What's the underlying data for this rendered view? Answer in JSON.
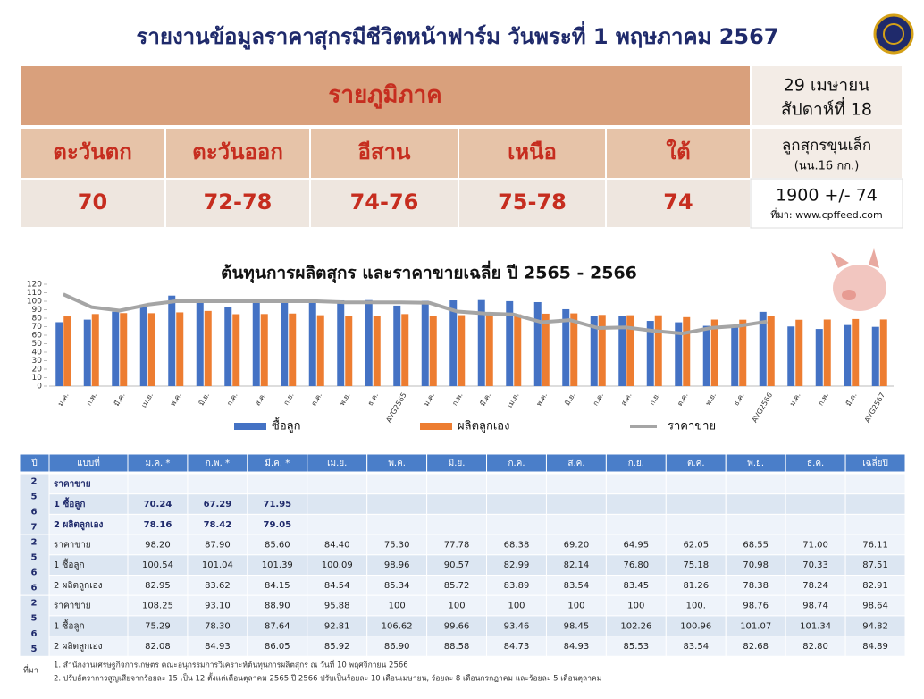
{
  "header": {
    "title": "รายงานข้อมูลราคาสุกรมีชีวิตหน้าฟาร์ม วันพระที่ 1 พฤษภาคม 2567"
  },
  "regions": {
    "title": "รายภูมิภาค",
    "date": "29 เมษายน",
    "week": "สัปดาห์ที่ 18",
    "names": [
      "ตะวันตก",
      "ตะวันออก",
      "อีสาน",
      "เหนือ",
      "ใต้"
    ],
    "prices": [
      "70",
      "72-78",
      "74-76",
      "75-78",
      "74"
    ],
    "piglet_label": "ลูกสุกรขุนเล็ก",
    "piglet_weight": "(นน.16 กก.)",
    "piglet_price": "1900 +/- 74",
    "source": "ที่มา: www.cpffeed.com"
  },
  "chart_data": {
    "type": "bar",
    "title": "ต้นทุนการผลิตสุกร  และราคาขายเฉลี่ย  ปี 2565 - 2566",
    "categories": [
      "ม.ค.",
      "ก.พ.",
      "มี.ค.",
      "เม.ย.",
      "พ.ค.",
      "มิ.ย.",
      "ก.ค.",
      "ส.ค.",
      "ก.ย.",
      "ต.ค.",
      "พ.ย.",
      "ธ.ค.",
      "AVG2565",
      "ม.ค.",
      "ก.พ.",
      "มี.ค.",
      "เม.ย.",
      "พ.ค.",
      "มิ.ย.",
      "ก.ค.",
      "ส.ค.",
      "ก.ย.",
      "ต.ค.",
      "พ.ย.",
      "ธ.ค.",
      "AVG2566",
      "ม.ค.",
      "ก.พ.",
      "มี.ค.",
      "AVG2567"
    ],
    "series": [
      {
        "name": "ซื้อลูก",
        "color": "#4472c4",
        "values": [
          75.29,
          78.3,
          87.64,
          92.81,
          106.62,
          99.66,
          93.46,
          98.45,
          102.26,
          100.96,
          101.07,
          101.34,
          94.82,
          100.54,
          101.04,
          101.39,
          100.09,
          98.96,
          90.57,
          82.99,
          82.14,
          76.8,
          75.18,
          70.98,
          70.33,
          87.51,
          70.24,
          67.29,
          71.95,
          69.8
        ]
      },
      {
        "name": "ผลิตลูกเอง",
        "color": "#ed7d31",
        "values": [
          82.08,
          84.93,
          86.05,
          85.92,
          86.9,
          88.58,
          84.73,
          84.93,
          85.53,
          83.54,
          82.68,
          82.8,
          84.89,
          82.95,
          83.62,
          84.15,
          84.54,
          85.34,
          85.72,
          83.89,
          83.54,
          83.45,
          81.26,
          78.38,
          78.24,
          82.91,
          78.16,
          78.42,
          79.05,
          78.5
        ]
      },
      {
        "name": "ราคาขาย",
        "type": "line",
        "color": "#a5a5a5",
        "values": [
          108.25,
          93.1,
          88.9,
          95.88,
          100,
          100,
          100,
          100,
          100,
          100,
          98.76,
          98.74,
          98.64,
          98.2,
          87.9,
          85.6,
          84.4,
          75.3,
          77.78,
          68.38,
          69.2,
          64.95,
          62.05,
          68.55,
          71.0,
          76.11,
          null,
          null,
          null,
          null
        ]
      }
    ],
    "ylim": [
      0,
      120
    ],
    "yticks": [
      0,
      10,
      20,
      30,
      40,
      50,
      60,
      70,
      80,
      90,
      100,
      110,
      120
    ],
    "legend": "bottom"
  },
  "table": {
    "header": [
      "ปี",
      "แบบที่",
      "ม.ค. *",
      "ก.พ. *",
      "มี.ค. *",
      "เม.ย.",
      "พ.ค.",
      "มิ.ย.",
      "ก.ค.",
      "ส.ค.",
      "ก.ย.",
      "ต.ค.",
      "พ.ย.",
      "ธ.ค.",
      "เฉลี่ยปี"
    ],
    "blocks": [
      {
        "year": [
          "2",
          "5",
          "6",
          "7"
        ],
        "rows": [
          {
            "label": "ราคาขาย",
            "cells": []
          },
          {
            "label": "1 ซื้อลูก",
            "cells": [
              "70.24",
              "67.29",
              "71.95"
            ]
          },
          {
            "label": "2 ผลิตลูกเอง",
            "cells": [
              "78.16",
              "78.42",
              "79.05"
            ]
          }
        ]
      },
      {
        "year": [
          "2",
          "5",
          "6",
          "6"
        ],
        "rows": [
          {
            "label": "ราคาขาย",
            "cells": [
              "98.20",
              "87.90",
              "85.60",
              "84.40",
              "75.30",
              "77.78",
              "68.38",
              "69.20",
              "64.95",
              "62.05",
              "68.55",
              "71.00",
              "76.11"
            ]
          },
          {
            "label": "1 ซื้อลูก",
            "cells": [
              "100.54",
              "101.04",
              "101.39",
              "100.09",
              "98.96",
              "90.57",
              "82.99",
              "82.14",
              "76.80",
              "75.18",
              "70.98",
              "70.33",
              "87.51"
            ]
          },
          {
            "label": "2 ผลิตลูกเอง",
            "cells": [
              "82.95",
              "83.62",
              "84.15",
              "84.54",
              "85.34",
              "85.72",
              "83.89",
              "83.54",
              "83.45",
              "81.26",
              "78.38",
              "78.24",
              "82.91"
            ]
          }
        ]
      },
      {
        "year": [
          "2",
          "5",
          "6",
          "5"
        ],
        "rows": [
          {
            "label": "ราคาขาย",
            "cells": [
              "108.25",
              "93.10",
              "88.90",
              "95.88",
              "100",
              "100",
              "100",
              "100",
              "100",
              "100.",
              "98.76",
              "98.74",
              "98.64"
            ]
          },
          {
            "label": "1 ซื้อลูก",
            "cells": [
              "75.29",
              "78.30",
              "87.64",
              "92.81",
              "106.62",
              "99.66",
              "93.46",
              "98.45",
              "102.26",
              "100.96",
              "101.07",
              "101.34",
              "94.82"
            ]
          },
          {
            "label": "2 ผลิตลูกเอง",
            "cells": [
              "82.08",
              "84.93",
              "86.05",
              "85.92",
              "86.90",
              "88.58",
              "84.73",
              "84.93",
              "85.53",
              "83.54",
              "82.68",
              "82.80",
              "84.89"
            ]
          }
        ]
      }
    ]
  },
  "footnotes": {
    "label": "ที่มา",
    "notes": [
      "1. สำนักงานเศรษฐกิจการเกษตร คณะอนุกรรมการวิเคราะห์ต้นทุนการผลิตสุกร  ณ วันที่ 10 พฤศจิกายน 2566",
      "2. ปรับอัตราการสูญเสียจากร้อยละ 15 เป็น 12 ตั้งแต่เดือนตุลาคม 2565 ปี 2566 ปรับเป็นร้อยละ 10 เดือนเมษายน, ร้อยละ 8 เดือนกรกฎาคม และร้อยละ 5 เดือนตุลาคม"
    ]
  }
}
